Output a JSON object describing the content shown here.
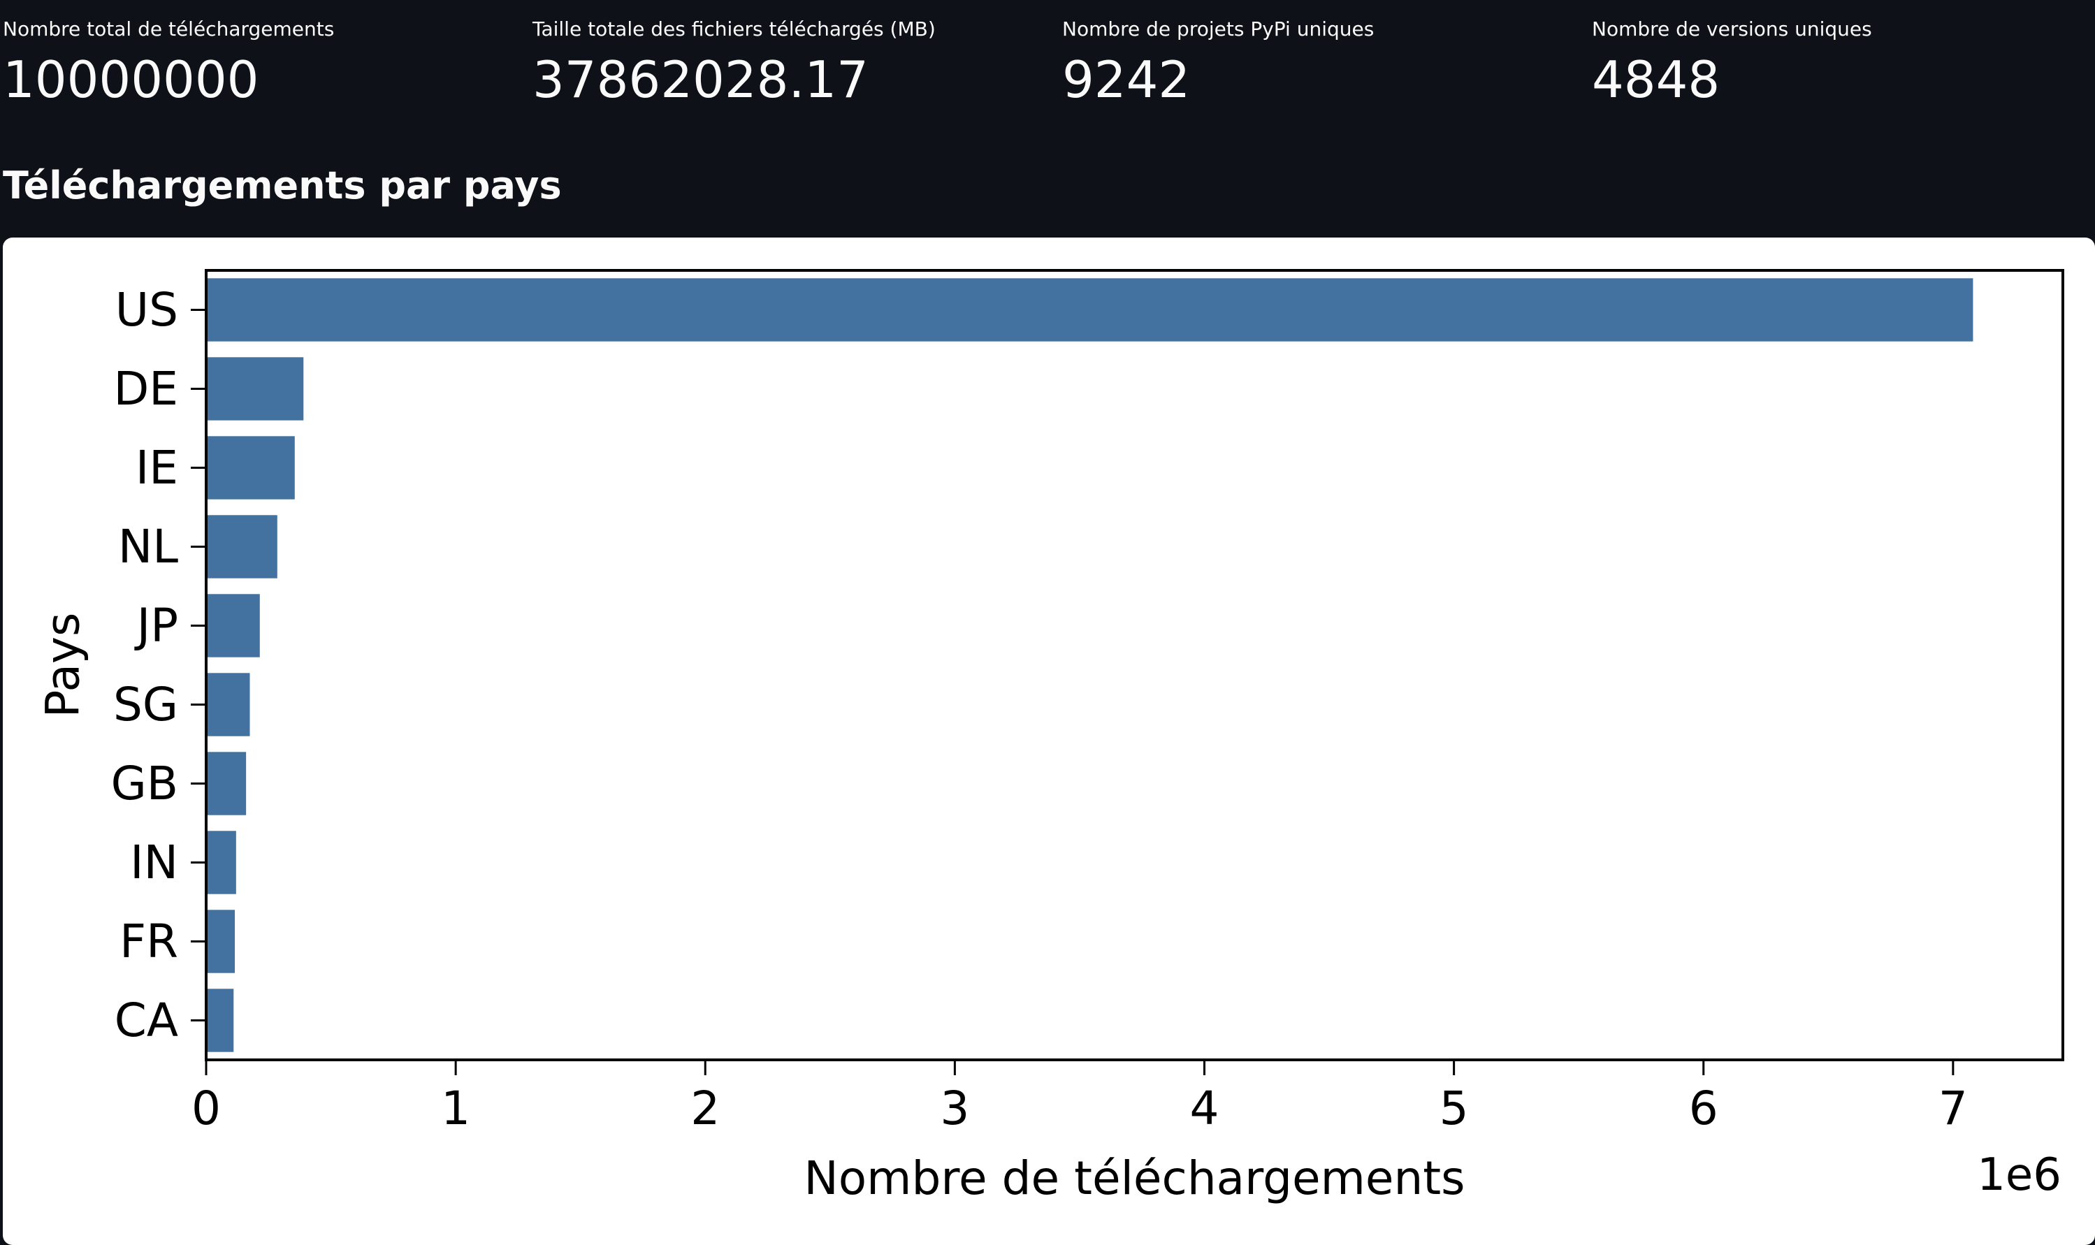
{
  "metrics": [
    {
      "label": "Nombre total de téléchargements",
      "value": "10000000"
    },
    {
      "label": "Taille totale des fichiers téléchargés (MB)",
      "value": "37862028.17"
    },
    {
      "label": "Nombre de projets PyPi uniques",
      "value": "9242"
    },
    {
      "label": "Nombre de versions uniques",
      "value": "4848"
    }
  ],
  "section_title": "Téléchargements par pays",
  "colors": {
    "background": "#0e1117",
    "text": "#fafafa",
    "bar": "#4472a0",
    "card": "#ffffff"
  },
  "chart_data": {
    "type": "bar",
    "orientation": "horizontal",
    "categories": [
      "US",
      "DE",
      "IE",
      "NL",
      "JP",
      "SG",
      "GB",
      "IN",
      "FR",
      "CA"
    ],
    "values": [
      7080000,
      390000,
      355000,
      285000,
      215000,
      175000,
      160000,
      120000,
      115000,
      110000
    ],
    "xlabel": "Nombre de téléchargements",
    "ylabel": "Pays",
    "xlim": [
      0,
      7440000
    ],
    "xticks": [
      0,
      1,
      2,
      3,
      4,
      5,
      6,
      7
    ],
    "x_offset_label": "1e6",
    "grid": false,
    "legend": "none"
  }
}
